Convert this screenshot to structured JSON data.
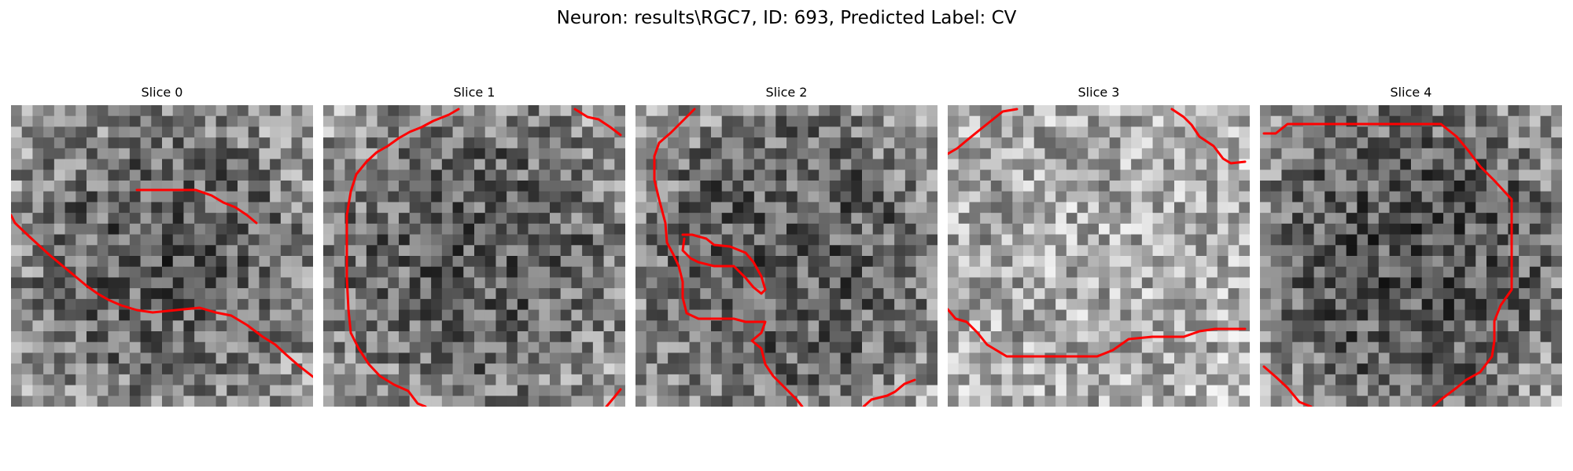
{
  "figure": {
    "title": "Neuron: results\\RGC7, ID: 693, Predicted Label: CV"
  },
  "colors": {
    "contour": "#ff0000"
  },
  "panels": [
    {
      "title": "Slice 0",
      "grid_size": 28,
      "seed": 17,
      "base": 118,
      "center_dark": 35,
      "edge_light": 50
    },
    {
      "title": "Slice 1",
      "grid_size": 28,
      "seed": 41,
      "base": 112,
      "center_dark": 25,
      "edge_light": 55
    },
    {
      "title": "Slice 2",
      "grid_size": 28,
      "seed": 73,
      "base": 108,
      "center_dark": 20,
      "edge_light": 60
    },
    {
      "title": "Slice 3",
      "grid_size": 28,
      "seed": 91,
      "base": 165,
      "center_dark": -10,
      "edge_light": 25
    },
    {
      "title": "Slice 4",
      "grid_size": 28,
      "seed": 53,
      "base": 100,
      "center_dark": 20,
      "edge_light": 70
    }
  ]
}
